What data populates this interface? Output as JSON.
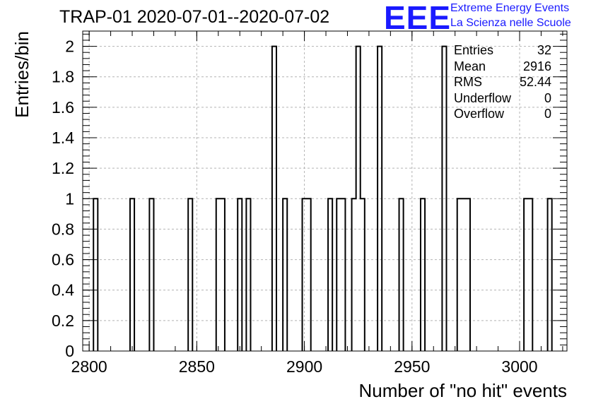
{
  "header": {
    "title": "TRAP-01 2020-07-01--2020-07-02",
    "logo_mark": "EEE",
    "logo_line1": "Extreme Energy Events",
    "logo_line2": "La Scienza nelle Scuole"
  },
  "stats_box": {
    "rows": [
      {
        "label": "Entries",
        "value": "32"
      },
      {
        "label": "Mean",
        "value": "2916"
      },
      {
        "label": "RMS",
        "value": "52.44"
      },
      {
        "label": "Underflow",
        "value": "0"
      },
      {
        "label": "Overflow",
        "value": "0"
      }
    ]
  },
  "chart_data": {
    "type": "histogram",
    "title": "TRAP-01 2020-07-01--2020-07-02",
    "xlabel": "Number of \"no hit\" events",
    "ylabel": "Entries/bin",
    "xlim": [
      2797,
      3022
    ],
    "ylim": [
      0,
      2.1
    ],
    "bin_width": 2,
    "x_ticks": [
      2800,
      2850,
      2900,
      2950,
      3000
    ],
    "x_tick_labels": [
      "2800",
      "2850",
      "2900",
      "2950",
      "3000"
    ],
    "y_ticks": [
      0,
      0.2,
      0.4,
      0.6,
      0.8,
      1,
      1.2,
      1.4,
      1.6,
      1.8,
      2
    ],
    "y_tick_labels": [
      "0",
      "0.2",
      "0.4",
      "0.6",
      "0.8",
      "1",
      "1.2",
      "1.4",
      "1.6",
      "1.8",
      "2"
    ],
    "grid": true,
    "bins": [
      {
        "x0": 2802,
        "x1": 2804,
        "count": 1
      },
      {
        "x0": 2819,
        "x1": 2821,
        "count": 1
      },
      {
        "x0": 2828,
        "x1": 2830,
        "count": 1
      },
      {
        "x0": 2846,
        "x1": 2848,
        "count": 1
      },
      {
        "x0": 2859,
        "x1": 2861,
        "count": 1
      },
      {
        "x0": 2861,
        "x1": 2863,
        "count": 1
      },
      {
        "x0": 2869,
        "x1": 2871,
        "count": 1
      },
      {
        "x0": 2873,
        "x1": 2875,
        "count": 1
      },
      {
        "x0": 2885,
        "x1": 2887,
        "count": 2
      },
      {
        "x0": 2890,
        "x1": 2892,
        "count": 1
      },
      {
        "x0": 2899,
        "x1": 2901,
        "count": 1
      },
      {
        "x0": 2901,
        "x1": 2903,
        "count": 1
      },
      {
        "x0": 2911,
        "x1": 2913,
        "count": 1
      },
      {
        "x0": 2915,
        "x1": 2917,
        "count": 1
      },
      {
        "x0": 2917,
        "x1": 2919,
        "count": 1
      },
      {
        "x0": 2922,
        "x1": 2924,
        "count": 1
      },
      {
        "x0": 2924,
        "x1": 2926,
        "count": 2
      },
      {
        "x0": 2926,
        "x1": 2928,
        "count": 1
      },
      {
        "x0": 2934,
        "x1": 2936,
        "count": 2
      },
      {
        "x0": 2944,
        "x1": 2946,
        "count": 1
      },
      {
        "x0": 2954,
        "x1": 2956,
        "count": 1
      },
      {
        "x0": 2964,
        "x1": 2966,
        "count": 2
      },
      {
        "x0": 2971,
        "x1": 2973,
        "count": 1
      },
      {
        "x0": 2973,
        "x1": 2975,
        "count": 1
      },
      {
        "x0": 2975,
        "x1": 2977,
        "count": 1
      },
      {
        "x0": 3002,
        "x1": 3004,
        "count": 1
      },
      {
        "x0": 3004,
        "x1": 3006,
        "count": 1
      },
      {
        "x0": 3013,
        "x1": 3015,
        "count": 1
      }
    ]
  }
}
